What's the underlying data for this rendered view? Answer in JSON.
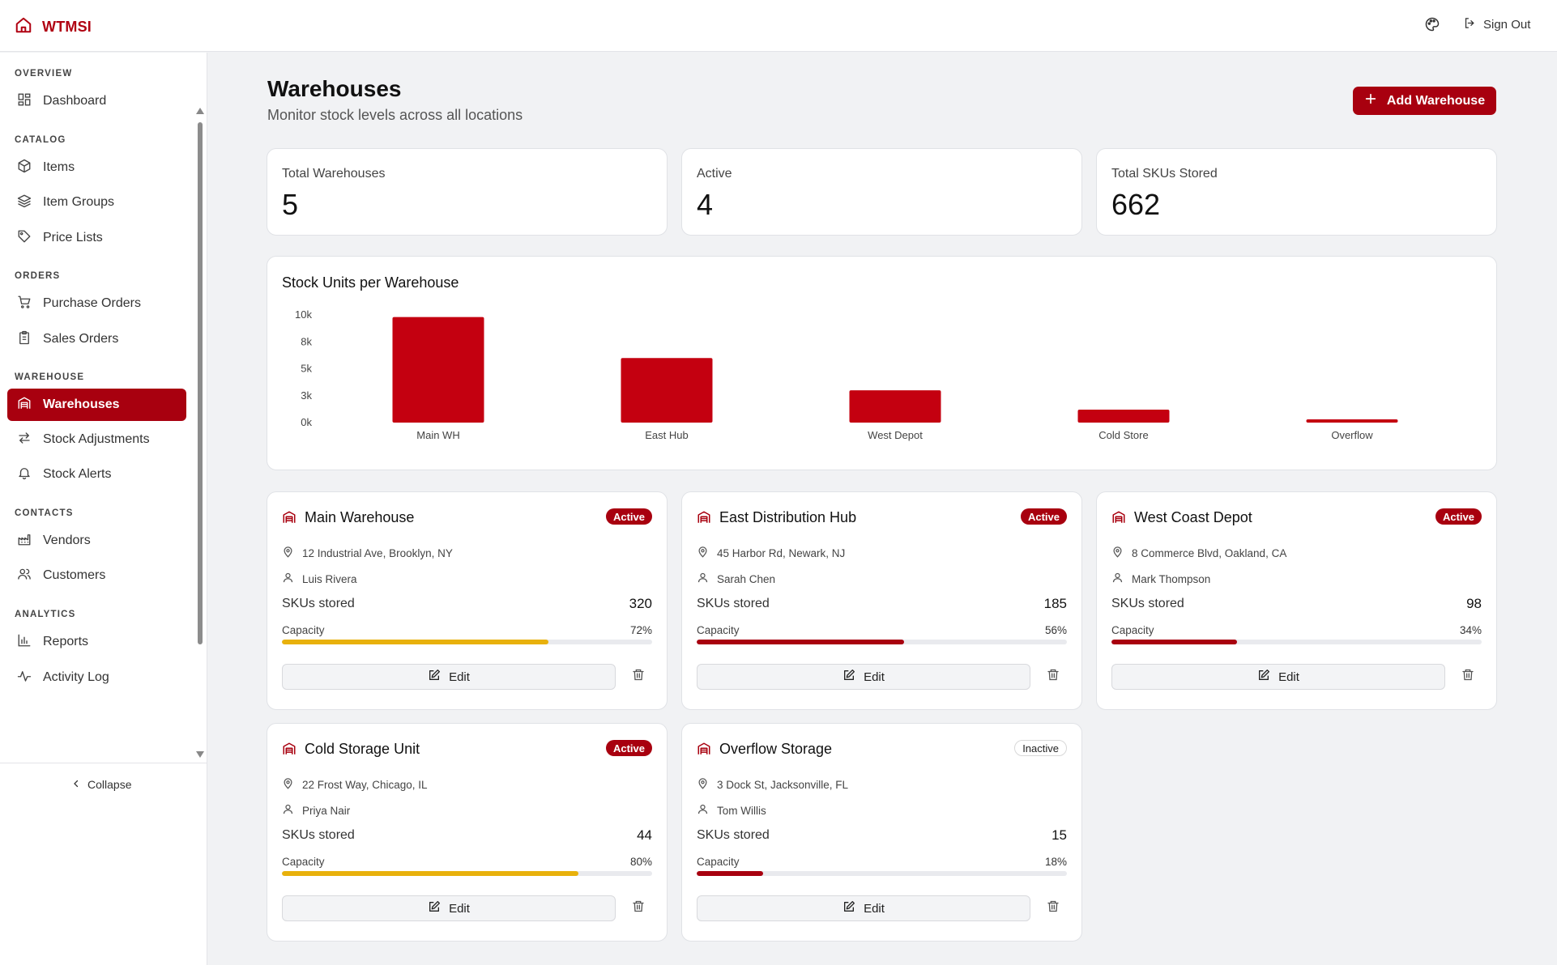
{
  "app": {
    "name": "WTMSI"
  },
  "header": {
    "signout_label": "Sign Out"
  },
  "sidebar": {
    "sections": [
      {
        "label": "OVERVIEW"
      },
      {
        "label": "CATALOG"
      },
      {
        "label": "ORDERS"
      },
      {
        "label": "WAREHOUSE"
      },
      {
        "label": "CONTACTS"
      },
      {
        "label": "ANALYTICS"
      }
    ],
    "items": [
      {
        "label": "Dashboard",
        "icon": "dashboard-icon"
      },
      {
        "label": "Items",
        "icon": "box-icon"
      },
      {
        "label": "Item Groups",
        "icon": "layers-icon"
      },
      {
        "label": "Price Lists",
        "icon": "tag-icon"
      },
      {
        "label": "Purchase Orders",
        "icon": "cart-icon"
      },
      {
        "label": "Sales Orders",
        "icon": "clipboard-icon"
      },
      {
        "label": "Warehouses",
        "icon": "warehouse-icon",
        "active": true
      },
      {
        "label": "Stock Adjustments",
        "icon": "arrows-icon"
      },
      {
        "label": "Stock Alerts",
        "icon": "bell-icon"
      },
      {
        "label": "Vendors",
        "icon": "factory-icon"
      },
      {
        "label": "Customers",
        "icon": "users-icon"
      },
      {
        "label": "Reports",
        "icon": "bar-chart-icon"
      },
      {
        "label": "Activity Log",
        "icon": "activity-icon"
      }
    ],
    "collapse_label": "Collapse"
  },
  "page": {
    "title": "Warehouses",
    "subtitle": "Monitor stock levels across all locations",
    "add_button": "Add Warehouse"
  },
  "stats": [
    {
      "label": "Total Warehouses",
      "value": "5"
    },
    {
      "label": "Active",
      "value": "4"
    },
    {
      "label": "Total SKUs Stored",
      "value": "662"
    }
  ],
  "chart_data": {
    "type": "bar",
    "title": "Stock Units per Warehouse",
    "categories": [
      "Main WH",
      "East Hub",
      "West Depot",
      "Cold Store",
      "Overflow"
    ],
    "values": [
      9800,
      6000,
      3000,
      1200,
      300
    ],
    "yticks": [
      "0k",
      "3k",
      "5k",
      "8k",
      "10k"
    ],
    "ylim": [
      0,
      10000
    ],
    "xlabel": "",
    "ylabel": "",
    "color": "#c40010"
  },
  "warehouses": [
    {
      "name": "Main Warehouse",
      "status": "Active",
      "address": "12 Industrial Ave, Brooklyn, NY",
      "manager": "Luis Rivera",
      "skus_label": "SKUs stored",
      "skus": "320",
      "capacity_label": "Capacity",
      "capacity": "72%",
      "capacity_fraction": 0.72,
      "bar_color": "#e8b10c",
      "edit_label": "Edit"
    },
    {
      "name": "East Distribution Hub",
      "status": "Active",
      "address": "45 Harbor Rd, Newark, NJ",
      "manager": "Sarah Chen",
      "skus_label": "SKUs stored",
      "skus": "185",
      "capacity_label": "Capacity",
      "capacity": "56%",
      "capacity_fraction": 0.56,
      "bar_color": "#a8000f",
      "edit_label": "Edit"
    },
    {
      "name": "West Coast Depot",
      "status": "Active",
      "address": "8 Commerce Blvd, Oakland, CA",
      "manager": "Mark Thompson",
      "skus_label": "SKUs stored",
      "skus": "98",
      "capacity_label": "Capacity",
      "capacity": "34%",
      "capacity_fraction": 0.34,
      "bar_color": "#a8000f",
      "edit_label": "Edit"
    },
    {
      "name": "Cold Storage Unit",
      "status": "Active",
      "address": "22 Frost Way, Chicago, IL",
      "manager": "Priya Nair",
      "skus_label": "SKUs stored",
      "skus": "44",
      "capacity_label": "Capacity",
      "capacity": "80%",
      "capacity_fraction": 0.8,
      "bar_color": "#e8b10c",
      "edit_label": "Edit"
    },
    {
      "name": "Overflow Storage",
      "status": "Inactive",
      "address": "3 Dock St, Jacksonville, FL",
      "manager": "Tom Willis",
      "skus_label": "SKUs stored",
      "skus": "15",
      "capacity_label": "Capacity",
      "capacity": "18%",
      "capacity_fraction": 0.18,
      "bar_color": "#a8000f",
      "edit_label": "Edit"
    }
  ],
  "colors": {
    "brand": "#a8000f",
    "bar": "#c40010",
    "warning": "#e8b10c"
  }
}
